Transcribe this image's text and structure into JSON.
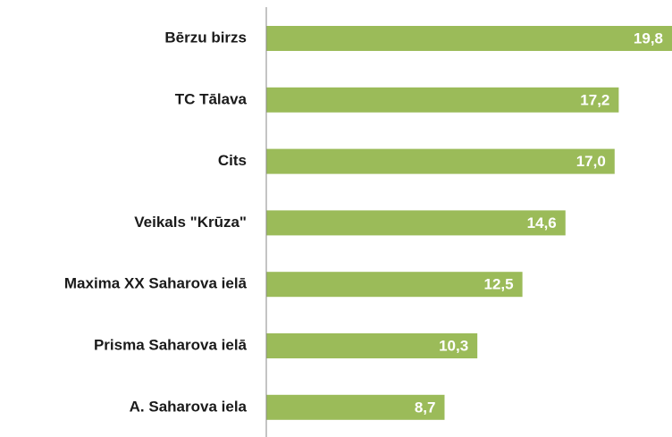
{
  "chart_data": {
    "type": "barh",
    "categories": [
      "Bērzu birzs",
      "TC Tālava",
      "Cits",
      "Veikals \"Krūza\"",
      "Maxima XX Saharova ielā",
      "Prisma Saharova ielā",
      "A. Saharova iela"
    ],
    "values": [
      19.8,
      17.2,
      17.0,
      14.6,
      12.5,
      10.3,
      8.7
    ],
    "value_labels": [
      "19,8",
      "17,2",
      "17,0",
      "14,6",
      "12,5",
      "10,3",
      "8,7"
    ],
    "color": "#9bbb59",
    "xlim": [
      0,
      19.8
    ]
  }
}
